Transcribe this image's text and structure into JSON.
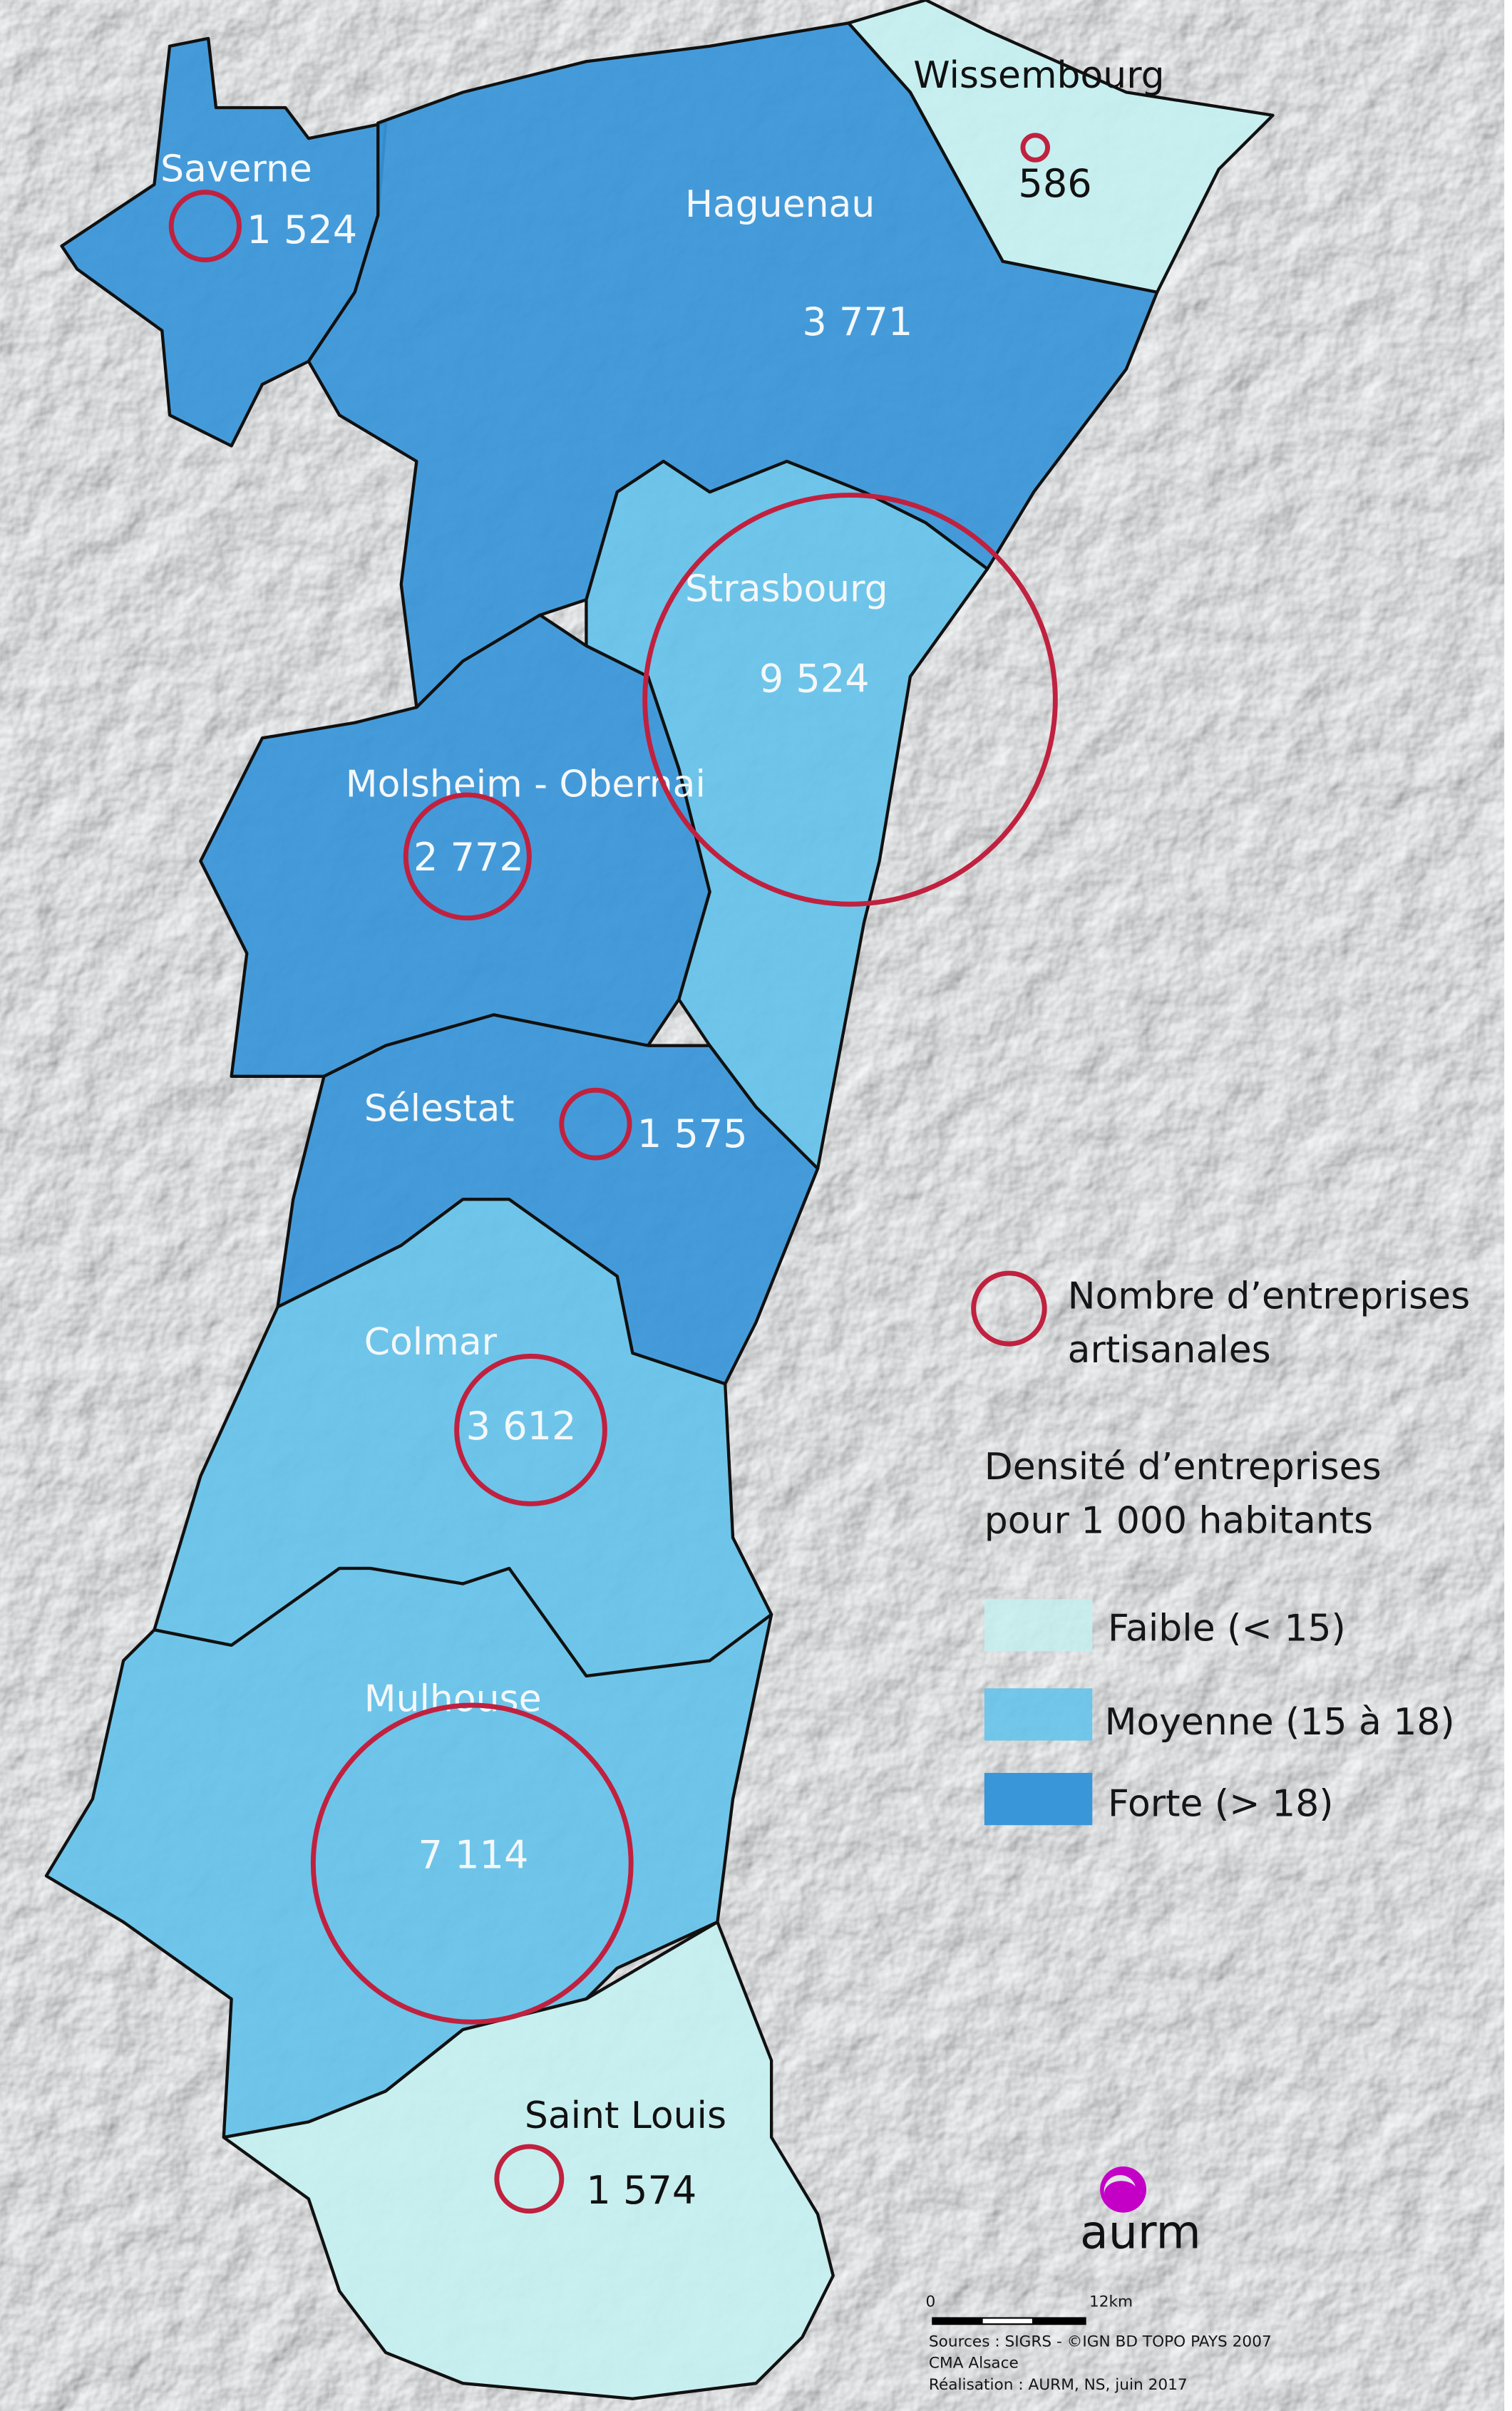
{
  "colors": {
    "faible": "#c6f0f0",
    "moyenne": "#66c3ea",
    "forte": "#3996d8",
    "circle": "#c0213f",
    "logo": "#c400c6",
    "background": "#e3e5e6"
  },
  "regions": [
    {
      "id": "saverne",
      "name": "Saverne",
      "value": "1 524",
      "density": "forte"
    },
    {
      "id": "haguenau",
      "name": "Haguenau",
      "value": "3 771",
      "density": "forte"
    },
    {
      "id": "wissembourg",
      "name": "Wissembourg",
      "value": "586",
      "density": "faible"
    },
    {
      "id": "strasbourg",
      "name": "Strasbourg",
      "value": "9 524",
      "density": "moyenne"
    },
    {
      "id": "molsheim",
      "name": "Molsheim - Obernai",
      "value": "2 772",
      "density": "forte"
    },
    {
      "id": "selestat",
      "name": "Sélestat",
      "value": "1 575",
      "density": "forte"
    },
    {
      "id": "colmar",
      "name": "Colmar",
      "value": "3 612",
      "density": "moyenne"
    },
    {
      "id": "mulhouse",
      "name": "Mulhouse",
      "value": "7 114",
      "density": "moyenne"
    },
    {
      "id": "saintlouis",
      "name": "Saint Louis",
      "value": "1 574",
      "density": "faible"
    }
  ],
  "legend": {
    "circle_label_1": "Nombre d’entreprises",
    "circle_label_2": "artisanales",
    "density_title_1": "Densité d’entreprises",
    "density_title_2": "pour 1 000 habitants",
    "classes": [
      {
        "label": "Faible (< 15)",
        "key": "faible"
      },
      {
        "label": "Moyenne (15 à 18)",
        "key": "moyenne"
      },
      {
        "label": "Forte (> 18)",
        "key": "forte"
      }
    ]
  },
  "logo": {
    "text": "aurm"
  },
  "scale": {
    "start": "0",
    "end": "12km"
  },
  "credits": [
    "Sources : SIGRS - ©IGN BD TOPO PAYS 2007",
    "CMA Alsace",
    "Réalisation : AURM, NS, juin 2017"
  ]
}
